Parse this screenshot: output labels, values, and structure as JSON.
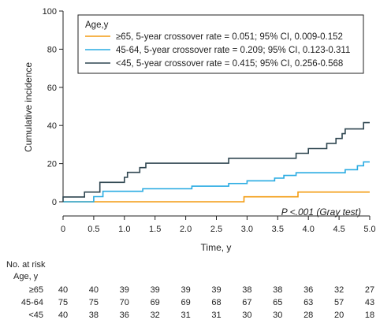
{
  "chart_data": {
    "type": "line",
    "subtype": "step",
    "xlabel": "Time, y",
    "ylabel": "Cumulative incidence",
    "xlim": [
      0,
      5
    ],
    "ylim": [
      0,
      100
    ],
    "x_ticks": [
      0,
      0.5,
      1.0,
      1.5,
      2.0,
      2.5,
      3.0,
      3.5,
      4.0,
      4.5,
      5.0
    ],
    "x_tick_labels": [
      "0",
      "0.5",
      "1.0",
      "1.5",
      "2.0",
      "2.5",
      "3.0",
      "3.5",
      "4.0",
      "4.5",
      "5.0"
    ],
    "y_ticks": [
      0,
      20,
      40,
      60,
      80,
      100
    ],
    "y_tick_labels": [
      "0",
      "20",
      "40",
      "60",
      "80",
      "100"
    ],
    "grid": false,
    "legend_title": "Age,y",
    "legend_position": "top-left",
    "annotation": "P <.001 (Gray test)",
    "series": [
      {
        "name": "≥65, 5-year crossover rate = 0.051; 95% CI, 0.009-0.152",
        "color": "#f39c12",
        "points": [
          [
            0,
            0
          ],
          [
            2.95,
            0
          ],
          [
            2.95,
            2.6
          ],
          [
            3.83,
            2.6
          ],
          [
            3.83,
            5.1
          ],
          [
            5.0,
            5.1
          ]
        ]
      },
      {
        "name": "45-64, 5-year crossover rate = 0.209; 95% CI, 0.123-0.311",
        "color": "#29abe2",
        "points": [
          [
            0,
            0
          ],
          [
            0.5,
            0
          ],
          [
            0.5,
            2.7
          ],
          [
            0.65,
            2.7
          ],
          [
            0.65,
            5.5
          ],
          [
            1.3,
            5.5
          ],
          [
            1.3,
            6.8
          ],
          [
            2.1,
            6.8
          ],
          [
            2.1,
            8.2
          ],
          [
            2.7,
            8.2
          ],
          [
            2.7,
            9.6
          ],
          [
            3.0,
            9.6
          ],
          [
            3.0,
            11.0
          ],
          [
            3.45,
            11.0
          ],
          [
            3.45,
            12.4
          ],
          [
            3.6,
            12.4
          ],
          [
            3.6,
            13.8
          ],
          [
            3.8,
            13.8
          ],
          [
            3.8,
            15.2
          ],
          [
            4.6,
            15.2
          ],
          [
            4.6,
            16.8
          ],
          [
            4.8,
            16.8
          ],
          [
            4.8,
            18.9
          ],
          [
            4.9,
            18.9
          ],
          [
            4.9,
            20.9
          ],
          [
            5.0,
            20.9
          ]
        ]
      },
      {
        "name": "<45, 5-year crossover rate = 0.415; 95% CI, 0.256-0.568",
        "color": "#2f4650",
        "points": [
          [
            0,
            0
          ],
          [
            0,
            2.5
          ],
          [
            0.35,
            2.5
          ],
          [
            0.35,
            5.1
          ],
          [
            0.6,
            5.1
          ],
          [
            0.6,
            10.2
          ],
          [
            1.0,
            10.2
          ],
          [
            1.0,
            12.8
          ],
          [
            1.05,
            12.8
          ],
          [
            1.05,
            15.4
          ],
          [
            1.25,
            15.4
          ],
          [
            1.25,
            17.9
          ],
          [
            1.35,
            17.9
          ],
          [
            1.35,
            20.2
          ],
          [
            2.7,
            20.2
          ],
          [
            2.7,
            22.8
          ],
          [
            3.8,
            22.8
          ],
          [
            3.8,
            25.4
          ],
          [
            4.0,
            25.4
          ],
          [
            4.0,
            27.9
          ],
          [
            4.3,
            27.9
          ],
          [
            4.3,
            30.6
          ],
          [
            4.45,
            30.6
          ],
          [
            4.45,
            33.2
          ],
          [
            4.55,
            33.2
          ],
          [
            4.55,
            35.7
          ],
          [
            4.6,
            35.7
          ],
          [
            4.6,
            38.2
          ],
          [
            4.9,
            38.2
          ],
          [
            4.9,
            41.5
          ],
          [
            5.0,
            41.5
          ]
        ]
      }
    ],
    "risk_table": {
      "heading_line1": "No. at risk",
      "heading_line2": "Age, y",
      "rows": [
        {
          "label": "≥65",
          "values": [
            "40",
            "40",
            "39",
            "39",
            "39",
            "39",
            "38",
            "38",
            "36",
            "32",
            "27"
          ]
        },
        {
          "label": "45-64",
          "values": [
            "75",
            "75",
            "70",
            "69",
            "69",
            "68",
            "67",
            "65",
            "63",
            "57",
            "43"
          ]
        },
        {
          "label": "<45",
          "values": [
            "40",
            "38",
            "36",
            "32",
            "31",
            "31",
            "30",
            "30",
            "28",
            "20",
            "18"
          ]
        }
      ]
    }
  }
}
